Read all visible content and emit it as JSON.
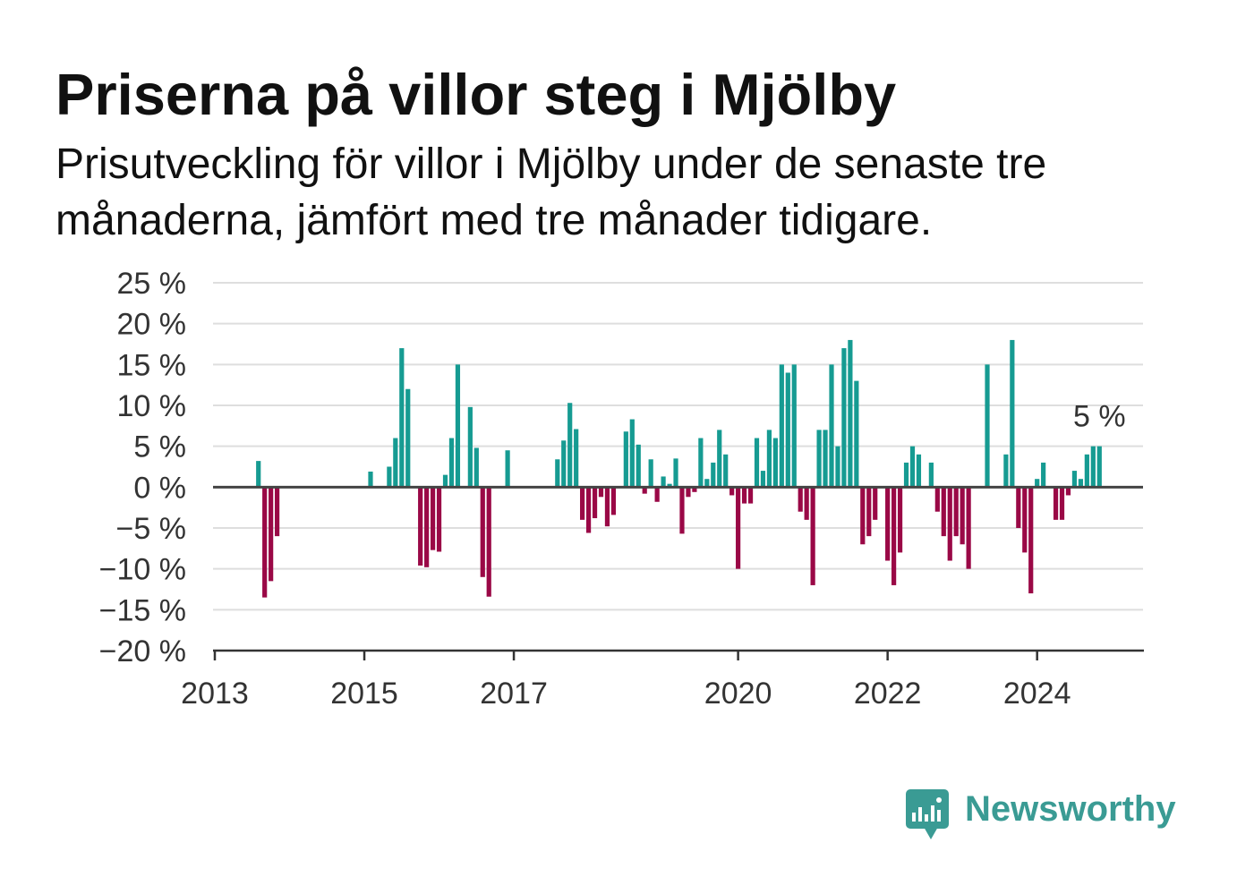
{
  "colors": {
    "positive": "#169b92",
    "negative": "#9a0846",
    "grid": "#dedede",
    "axis": "#333333",
    "zero_line": "#444444",
    "text": "#111111",
    "brand": "#3a9b94"
  },
  "logo": {
    "name": "Newsworthy",
    "icon": "newsworthy-chart-bubble-icon"
  },
  "chart_data": {
    "type": "bar",
    "title": "Priserna på villor steg i Mjölby",
    "subtitle": "Prisutveckling för villor i Mjölby under de senaste tre månaderna, jämfört med tre månader tidigare.",
    "xlabel": "",
    "ylabel": "",
    "x_unit": "month",
    "xlim": [
      "2013-01",
      "2025-06"
    ],
    "ylim": [
      -20,
      25
    ],
    "grid": true,
    "y_ticks": [
      25,
      20,
      15,
      10,
      5,
      0,
      -5,
      -10,
      -15,
      -20
    ],
    "y_tick_labels": [
      "25 %",
      "20 %",
      "15 %",
      "10 %",
      "5 %",
      "0 %",
      "−5 %",
      "−10 %",
      "−15 %",
      "−20 %"
    ],
    "x_ticks": [
      "2013-01",
      "2015-01",
      "2017-01",
      "2020-01",
      "2022-01",
      "2024-01"
    ],
    "x_tick_labels": [
      "2013",
      "2015",
      "2017",
      "2020",
      "2022",
      "2024"
    ],
    "points": [
      {
        "x": "2013-08",
        "y": 3.2
      },
      {
        "x": "2013-09",
        "y": -13.5
      },
      {
        "x": "2013-10",
        "y": -11.5
      },
      {
        "x": "2013-11",
        "y": -6
      },
      {
        "x": "2015-02",
        "y": 1.9
      },
      {
        "x": "2015-05",
        "y": 2.5
      },
      {
        "x": "2015-06",
        "y": 6
      },
      {
        "x": "2015-07",
        "y": 17
      },
      {
        "x": "2015-08",
        "y": 12
      },
      {
        "x": "2015-10",
        "y": -9.6
      },
      {
        "x": "2015-11",
        "y": -9.8
      },
      {
        "x": "2015-12",
        "y": -7.7
      },
      {
        "x": "2016-01",
        "y": -7.9
      },
      {
        "x": "2016-02",
        "y": 1.5
      },
      {
        "x": "2016-03",
        "y": 6
      },
      {
        "x": "2016-04",
        "y": 15
      },
      {
        "x": "2016-06",
        "y": 9.8
      },
      {
        "x": "2016-07",
        "y": 4.8
      },
      {
        "x": "2016-08",
        "y": -11
      },
      {
        "x": "2016-09",
        "y": -13.4
      },
      {
        "x": "2016-12",
        "y": 4.5
      },
      {
        "x": "2017-08",
        "y": 3.4
      },
      {
        "x": "2017-09",
        "y": 5.7
      },
      {
        "x": "2017-10",
        "y": 10.3
      },
      {
        "x": "2017-11",
        "y": 7.1
      },
      {
        "x": "2017-12",
        "y": -4
      },
      {
        "x": "2018-01",
        "y": -5.6
      },
      {
        "x": "2018-02",
        "y": -3.8
      },
      {
        "x": "2018-03",
        "y": -1.2
      },
      {
        "x": "2018-04",
        "y": -4.8
      },
      {
        "x": "2018-05",
        "y": -3.4
      },
      {
        "x": "2018-07",
        "y": 6.8
      },
      {
        "x": "2018-08",
        "y": 8.3
      },
      {
        "x": "2018-09",
        "y": 5.2
      },
      {
        "x": "2018-10",
        "y": -0.8
      },
      {
        "x": "2018-11",
        "y": 3.4
      },
      {
        "x": "2018-12",
        "y": -1.8
      },
      {
        "x": "2019-01",
        "y": 1.3
      },
      {
        "x": "2019-02",
        "y": 0.4
      },
      {
        "x": "2019-03",
        "y": 3.5
      },
      {
        "x": "2019-04",
        "y": -5.7
      },
      {
        "x": "2019-05",
        "y": -1.2
      },
      {
        "x": "2019-06",
        "y": -0.6
      },
      {
        "x": "2019-07",
        "y": 6
      },
      {
        "x": "2019-08",
        "y": 1
      },
      {
        "x": "2019-09",
        "y": 3
      },
      {
        "x": "2019-10",
        "y": 7
      },
      {
        "x": "2019-11",
        "y": 4
      },
      {
        "x": "2019-12",
        "y": -1
      },
      {
        "x": "2020-01",
        "y": -10
      },
      {
        "x": "2020-02",
        "y": -2
      },
      {
        "x": "2020-03",
        "y": -2
      },
      {
        "x": "2020-04",
        "y": 6
      },
      {
        "x": "2020-05",
        "y": 2
      },
      {
        "x": "2020-06",
        "y": 7
      },
      {
        "x": "2020-07",
        "y": 6
      },
      {
        "x": "2020-08",
        "y": 15
      },
      {
        "x": "2020-09",
        "y": 14
      },
      {
        "x": "2020-10",
        "y": 15
      },
      {
        "x": "2020-11",
        "y": -3
      },
      {
        "x": "2020-12",
        "y": -4
      },
      {
        "x": "2021-01",
        "y": -12
      },
      {
        "x": "2021-02",
        "y": 7
      },
      {
        "x": "2021-03",
        "y": 7
      },
      {
        "x": "2021-04",
        "y": 15
      },
      {
        "x": "2021-05",
        "y": 5
      },
      {
        "x": "2021-06",
        "y": 17
      },
      {
        "x": "2021-07",
        "y": 18
      },
      {
        "x": "2021-08",
        "y": 13
      },
      {
        "x": "2021-09",
        "y": -7
      },
      {
        "x": "2021-10",
        "y": -6
      },
      {
        "x": "2021-11",
        "y": -4
      },
      {
        "x": "2022-01",
        "y": -9
      },
      {
        "x": "2022-02",
        "y": -12
      },
      {
        "x": "2022-03",
        "y": -8
      },
      {
        "x": "2022-04",
        "y": 3
      },
      {
        "x": "2022-05",
        "y": 5
      },
      {
        "x": "2022-06",
        "y": 4
      },
      {
        "x": "2022-08",
        "y": 3
      },
      {
        "x": "2022-09",
        "y": -3
      },
      {
        "x": "2022-10",
        "y": -6
      },
      {
        "x": "2022-11",
        "y": -9
      },
      {
        "x": "2022-12",
        "y": -6
      },
      {
        "x": "2023-01",
        "y": -7
      },
      {
        "x": "2023-02",
        "y": -10
      },
      {
        "x": "2023-05",
        "y": 15
      },
      {
        "x": "2023-08",
        "y": 4
      },
      {
        "x": "2023-09",
        "y": 18
      },
      {
        "x": "2023-10",
        "y": -5
      },
      {
        "x": "2023-11",
        "y": -8
      },
      {
        "x": "2023-12",
        "y": -13
      },
      {
        "x": "2024-01",
        "y": 1
      },
      {
        "x": "2024-02",
        "y": 3
      },
      {
        "x": "2024-04",
        "y": -4
      },
      {
        "x": "2024-05",
        "y": -4
      },
      {
        "x": "2024-06",
        "y": -1
      },
      {
        "x": "2024-07",
        "y": 2
      },
      {
        "x": "2024-08",
        "y": 1
      },
      {
        "x": "2024-09",
        "y": 4
      },
      {
        "x": "2024-10",
        "y": 5
      },
      {
        "x": "2024-11",
        "y": 5
      }
    ],
    "annotation": {
      "x": "2024-11",
      "y": 5,
      "text": "5 %"
    }
  }
}
